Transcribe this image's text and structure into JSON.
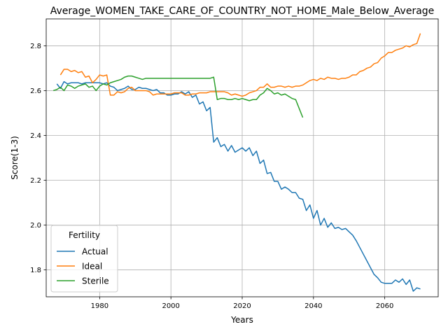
{
  "chart_data": {
    "type": "line",
    "title": "Average_WOMEN_TAKE_CARE_OF_COUNTRY_NOT_HOME_Male_Below_Average",
    "xlabel": "Years",
    "ylabel": "Score(1-3)",
    "xlim": [
      1965,
      2075
    ],
    "ylim": [
      1.68,
      2.92
    ],
    "xticks": [
      1980,
      2000,
      2020,
      2040,
      2060
    ],
    "yticks": [
      1.8,
      2.0,
      2.2,
      2.4,
      2.6,
      2.8
    ],
    "xtick_labels": [
      "1980",
      "2000",
      "2020",
      "2040",
      "2060"
    ],
    "ytick_labels": [
      "1.8",
      "2.0",
      "2.2",
      "2.4",
      "2.6",
      "2.8"
    ],
    "grid": true,
    "legend": {
      "title": "Fertility",
      "position": "lower-left"
    },
    "colors": {
      "Actual": "#1f77b4",
      "Ideal": "#ff7f0e",
      "Sterile": "#2ca02c"
    },
    "series": [
      {
        "name": "Actual",
        "x": [
          1968,
          1969,
          1970,
          1971,
          1972,
          1973,
          1974,
          1975,
          1976,
          1977,
          1978,
          1979,
          1980,
          1981,
          1982,
          1983,
          1984,
          1985,
          1986,
          1987,
          1988,
          1989,
          1990,
          1991,
          1992,
          1993,
          1994,
          1995,
          1996,
          1997,
          1998,
          1999,
          2000,
          2001,
          2002,
          2003,
          2004,
          2005,
          2006,
          2007,
          2008,
          2009,
          2010,
          2011,
          2012,
          2013,
          2014,
          2015,
          2016,
          2017,
          2018,
          2019,
          2020,
          2021,
          2022,
          2023,
          2024,
          2025,
          2026,
          2027,
          2028,
          2029,
          2030,
          2031,
          2032,
          2033,
          2034,
          2035,
          2036,
          2037,
          2038,
          2039,
          2040,
          2041,
          2042,
          2043,
          2044,
          2045,
          2046,
          2047,
          2048,
          2049,
          2050,
          2051,
          2052,
          2053,
          2054,
          2055,
          2056,
          2057,
          2058,
          2059,
          2060,
          2061,
          2062,
          2063,
          2064,
          2065,
          2066,
          2067,
          2068,
          2069,
          2070
        ],
        "values": [
          2.63,
          2.61,
          2.64,
          2.63,
          2.635,
          2.635,
          2.635,
          2.63,
          2.635,
          2.635,
          2.635,
          2.635,
          2.635,
          2.63,
          2.635,
          2.62,
          2.615,
          2.6,
          2.605,
          2.61,
          2.62,
          2.605,
          2.605,
          2.615,
          2.61,
          2.61,
          2.605,
          2.6,
          2.605,
          2.59,
          2.59,
          2.58,
          2.58,
          2.585,
          2.585,
          2.595,
          2.585,
          2.595,
          2.57,
          2.58,
          2.54,
          2.55,
          2.51,
          2.525,
          2.37,
          2.39,
          2.35,
          2.36,
          2.33,
          2.355,
          2.325,
          2.335,
          2.345,
          2.33,
          2.345,
          2.31,
          2.33,
          2.275,
          2.29,
          2.23,
          2.235,
          2.195,
          2.195,
          2.16,
          2.17,
          2.16,
          2.145,
          2.145,
          2.12,
          2.115,
          2.065,
          2.09,
          2.03,
          2.065,
          2.0,
          2.03,
          1.99,
          2.01,
          1.985,
          1.99,
          1.98,
          1.985,
          1.97,
          1.955,
          1.93,
          1.9,
          1.87,
          1.84,
          1.81,
          1.78,
          1.765,
          1.745,
          1.74,
          1.74,
          1.74,
          1.755,
          1.745,
          1.76,
          1.735,
          1.755,
          1.705,
          1.72,
          1.715
        ]
      },
      {
        "name": "Ideal",
        "x": [
          1969,
          1970,
          1971,
          1972,
          1973,
          1974,
          1975,
          1976,
          1977,
          1978,
          1979,
          1980,
          1981,
          1982,
          1983,
          1984,
          1985,
          1986,
          1987,
          1988,
          1989,
          1990,
          1991,
          1992,
          1993,
          1994,
          1995,
          1996,
          1997,
          1998,
          1999,
          2000,
          2001,
          2002,
          2003,
          2004,
          2005,
          2006,
          2007,
          2008,
          2009,
          2010,
          2011,
          2012,
          2013,
          2014,
          2015,
          2016,
          2017,
          2018,
          2019,
          2020,
          2021,
          2022,
          2023,
          2024,
          2025,
          2026,
          2027,
          2028,
          2029,
          2030,
          2031,
          2032,
          2033,
          2034,
          2035,
          2036,
          2037,
          2038,
          2039,
          2040,
          2041,
          2042,
          2043,
          2044,
          2045,
          2046,
          2047,
          2048,
          2049,
          2050,
          2051,
          2052,
          2053,
          2054,
          2055,
          2056,
          2057,
          2058,
          2059,
          2060,
          2061,
          2062,
          2063,
          2064,
          2065,
          2066,
          2067,
          2068,
          2069,
          2070
        ],
        "values": [
          2.67,
          2.695,
          2.695,
          2.685,
          2.69,
          2.68,
          2.685,
          2.66,
          2.665,
          2.635,
          2.65,
          2.67,
          2.665,
          2.67,
          2.58,
          2.58,
          2.595,
          2.59,
          2.595,
          2.61,
          2.615,
          2.6,
          2.6,
          2.6,
          2.6,
          2.595,
          2.58,
          2.585,
          2.585,
          2.585,
          2.585,
          2.585,
          2.59,
          2.59,
          2.59,
          2.58,
          2.58,
          2.585,
          2.585,
          2.59,
          2.59,
          2.59,
          2.595,
          2.595,
          2.595,
          2.595,
          2.595,
          2.59,
          2.58,
          2.585,
          2.58,
          2.575,
          2.58,
          2.59,
          2.595,
          2.6,
          2.615,
          2.615,
          2.63,
          2.615,
          2.615,
          2.62,
          2.62,
          2.615,
          2.62,
          2.615,
          2.62,
          2.62,
          2.625,
          2.635,
          2.645,
          2.65,
          2.645,
          2.655,
          2.65,
          2.66,
          2.655,
          2.655,
          2.65,
          2.655,
          2.655,
          2.66,
          2.67,
          2.67,
          2.685,
          2.69,
          2.7,
          2.705,
          2.72,
          2.725,
          2.745,
          2.755,
          2.77,
          2.77,
          2.78,
          2.785,
          2.79,
          2.8,
          2.795,
          2.805,
          2.81,
          2.855
        ]
      },
      {
        "name": "Sterile",
        "x": [
          1967,
          1968,
          1969,
          1970,
          1971,
          1972,
          1973,
          1974,
          1975,
          1976,
          1977,
          1978,
          1979,
          1980,
          1981,
          1982,
          1983,
          1984,
          1985,
          1986,
          1987,
          1988,
          1989,
          1990,
          1991,
          1992,
          1993,
          1994,
          1995,
          1996,
          1997,
          1998,
          1999,
          2000,
          2001,
          2002,
          2003,
          2004,
          2005,
          2006,
          2007,
          2008,
          2009,
          2010,
          2011,
          2012,
          2013,
          2014,
          2015,
          2016,
          2017,
          2018,
          2019,
          2020,
          2021,
          2022,
          2023,
          2024,
          2025,
          2026,
          2027,
          2028,
          2029,
          2030,
          2031,
          2032,
          2033,
          2034,
          2035,
          2036,
          2037
        ],
        "values": [
          2.6,
          2.605,
          2.615,
          2.6,
          2.625,
          2.62,
          2.61,
          2.62,
          2.625,
          2.63,
          2.615,
          2.62,
          2.6,
          2.62,
          2.63,
          2.625,
          2.635,
          2.64,
          2.645,
          2.65,
          2.66,
          2.665,
          2.665,
          2.66,
          2.655,
          2.65,
          2.655,
          2.655,
          2.655,
          2.655,
          2.655,
          2.655,
          2.655,
          2.655,
          2.655,
          2.655,
          2.655,
          2.655,
          2.655,
          2.655,
          2.655,
          2.655,
          2.655,
          2.655,
          2.655,
          2.66,
          2.56,
          2.565,
          2.565,
          2.56,
          2.56,
          2.565,
          2.56,
          2.565,
          2.56,
          2.555,
          2.56,
          2.56,
          2.58,
          2.59,
          2.61,
          2.6,
          2.585,
          2.59,
          2.58,
          2.585,
          2.575,
          2.565,
          2.56,
          2.52,
          2.48
        ]
      }
    ]
  }
}
